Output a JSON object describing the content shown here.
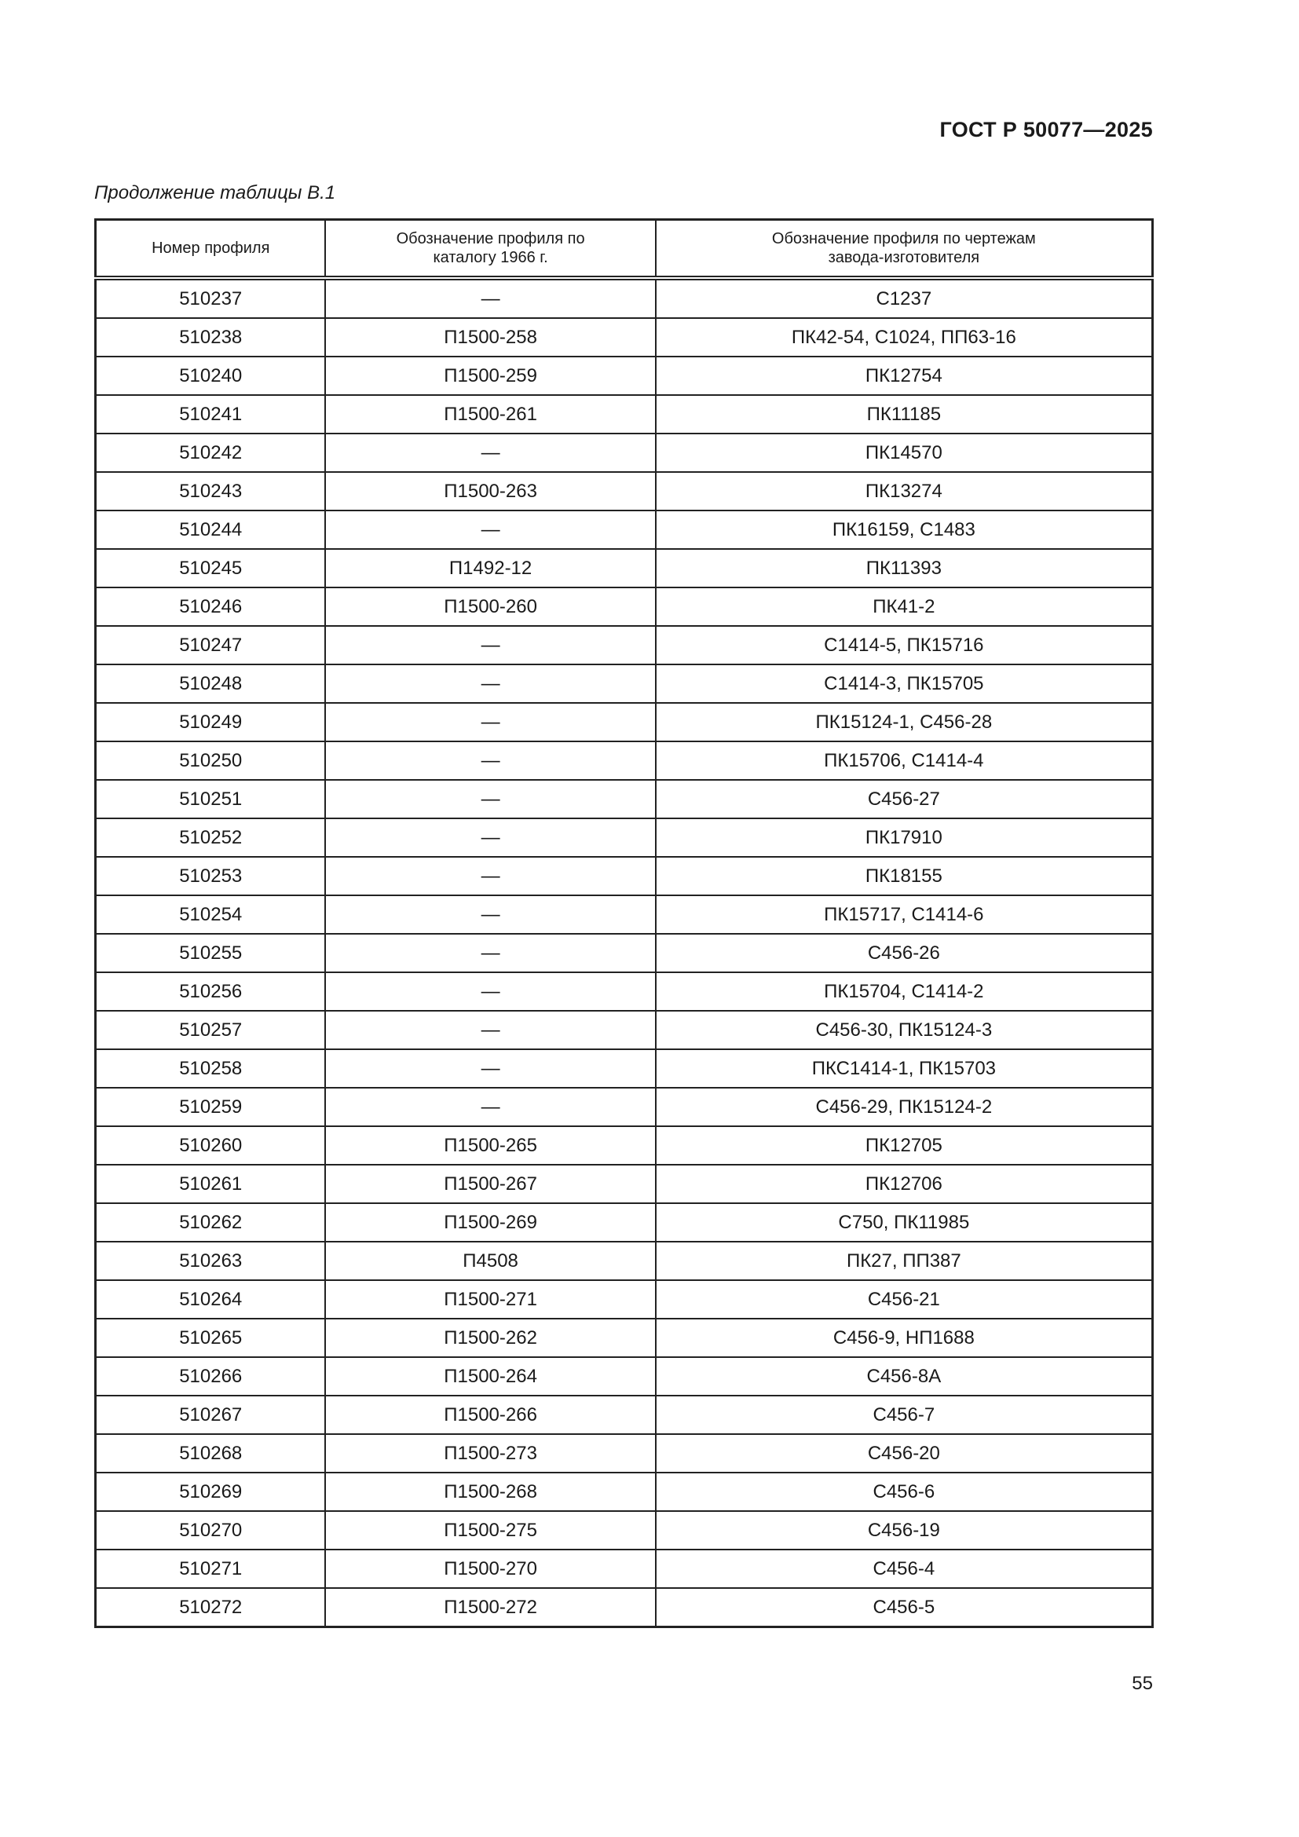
{
  "header": {
    "doc_code": "ГОСТ Р 50077—2025"
  },
  "caption": "Продолжение таблицы В.1",
  "table": {
    "columns": [
      "Номер профиля",
      "Обозначение профиля по каталогу 1966 г.",
      "Обозначение профиля по чертежам завода-изготовителя"
    ],
    "rows": [
      [
        "510237",
        "—",
        "С1237"
      ],
      [
        "510238",
        "П1500-258",
        "ПК42-54, С1024, ПП63-16"
      ],
      [
        "510240",
        "П1500-259",
        "ПК12754"
      ],
      [
        "510241",
        "П1500-261",
        "ПК11185"
      ],
      [
        "510242",
        "—",
        "ПК14570"
      ],
      [
        "510243",
        "П1500-263",
        "ПК13274"
      ],
      [
        "510244",
        "—",
        "ПК16159, С1483"
      ],
      [
        "510245",
        "П1492-12",
        "ПК11393"
      ],
      [
        "510246",
        "П1500-260",
        "ПК41-2"
      ],
      [
        "510247",
        "—",
        "С1414-5, ПК15716"
      ],
      [
        "510248",
        "—",
        "С1414-3, ПК15705"
      ],
      [
        "510249",
        "—",
        "ПК15124-1, С456-28"
      ],
      [
        "510250",
        "—",
        "ПК15706, С1414-4"
      ],
      [
        "510251",
        "—",
        "С456-27"
      ],
      [
        "510252",
        "—",
        "ПК17910"
      ],
      [
        "510253",
        "—",
        "ПК18155"
      ],
      [
        "510254",
        "—",
        "ПК15717, С1414-6"
      ],
      [
        "510255",
        "—",
        "С456-26"
      ],
      [
        "510256",
        "—",
        "ПК15704, С1414-2"
      ],
      [
        "510257",
        "—",
        "С456-30, ПК15124-3"
      ],
      [
        "510258",
        "—",
        "ПКС1414-1, ПК15703"
      ],
      [
        "510259",
        "—",
        "С456-29, ПК15124-2"
      ],
      [
        "510260",
        "П1500-265",
        "ПК12705"
      ],
      [
        "510261",
        "П1500-267",
        "ПК12706"
      ],
      [
        "510262",
        "П1500-269",
        "С750, ПК11985"
      ],
      [
        "510263",
        "П4508",
        "ПК27, ПП387"
      ],
      [
        "510264",
        "П1500-271",
        "С456-21"
      ],
      [
        "510265",
        "П1500-262",
        "С456-9, НП1688"
      ],
      [
        "510266",
        "П1500-264",
        "С456-8А"
      ],
      [
        "510267",
        "П1500-266",
        "С456-7"
      ],
      [
        "510268",
        "П1500-273",
        "С456-20"
      ],
      [
        "510269",
        "П1500-268",
        "С456-6"
      ],
      [
        "510270",
        "П1500-275",
        "С456-19"
      ],
      [
        "510271",
        "П1500-270",
        "С456-4"
      ],
      [
        "510272",
        "П1500-272",
        "С456-5"
      ]
    ]
  },
  "page_number": "55"
}
